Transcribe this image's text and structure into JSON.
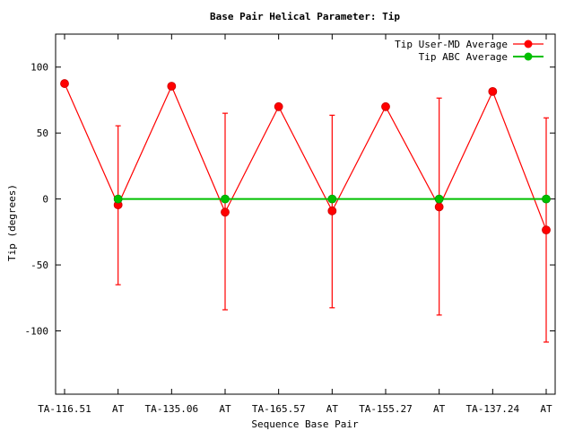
{
  "chart_data": {
    "type": "line",
    "title": "Base Pair Helical Parameter: Tip",
    "xlabel": "Sequence Base Pair",
    "ylabel": "Tip (degrees)",
    "categories": [
      "TA-116.51",
      "AT",
      "TA-135.06",
      "AT",
      "TA-165.57",
      "AT",
      "TA-155.27",
      "AT",
      "TA-137.24",
      "AT"
    ],
    "ylim": [
      -148,
      125
    ],
    "yticks": [
      -100,
      -50,
      0,
      50,
      100
    ],
    "grid": false,
    "legend_position": "top-right",
    "series": [
      {
        "name": "Tip User-MD Average",
        "color": "#ff0000",
        "x": [
          0,
          1,
          2,
          3,
          4,
          5,
          6,
          7,
          8,
          9
        ],
        "values": [
          87.5,
          -4.5,
          85.5,
          -10,
          70,
          -9,
          70,
          -6,
          81.5,
          -23.5
        ],
        "error_bars": [
          {
            "x": 1,
            "low": -65,
            "high": 55.5
          },
          {
            "x": 3,
            "low": -84,
            "high": 65
          },
          {
            "x": 5,
            "low": -82.5,
            "high": 63.5
          },
          {
            "x": 7,
            "low": -88,
            "high": 76.5
          },
          {
            "x": 9,
            "low": -108.5,
            "high": 61.5
          }
        ]
      },
      {
        "name": "Tip ABC Average",
        "color": "#00c000",
        "x": [
          1,
          3,
          5,
          7,
          9
        ],
        "values": [
          0,
          0,
          0,
          0,
          0
        ]
      }
    ]
  }
}
